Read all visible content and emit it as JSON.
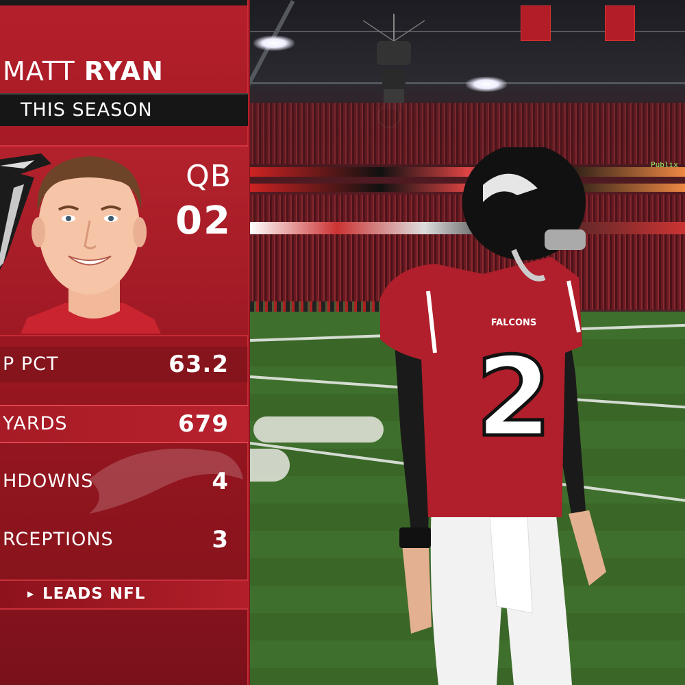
{
  "player": {
    "first_name": "MATT",
    "last_name": "RYAN",
    "period": "THIS SEASON",
    "position": "QB",
    "number": "02"
  },
  "stats": [
    {
      "label": "P PCT",
      "value": "63.2"
    },
    {
      "label": "YARDS",
      "value": "679"
    },
    {
      "label": "HDOWNS",
      "value": "4"
    },
    {
      "label": "RCEPTIONS",
      "value": "3"
    }
  ],
  "leads": {
    "text": "LEADS NFL"
  },
  "scene": {
    "jersey_text": "FALCONS",
    "jersey_number": "2",
    "sponsor": "Publix"
  },
  "colors": {
    "panel_red": "#a71b26",
    "highlight_red": "#b8222d",
    "season_bar": "#161616",
    "jersey_red": "#b01f2b"
  }
}
